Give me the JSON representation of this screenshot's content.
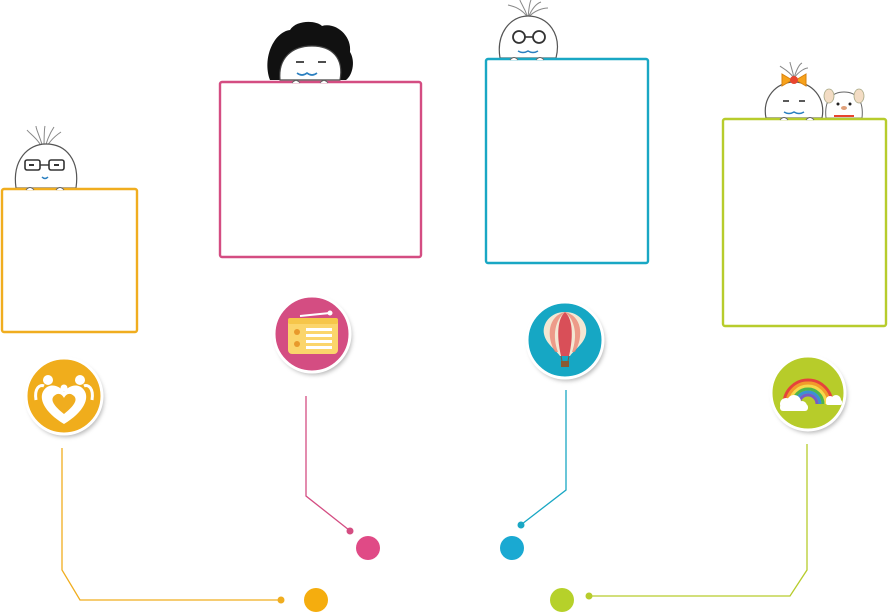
{
  "colors": {
    "orange": "#f0ad1f",
    "pink": "#d44d82",
    "blue": "#19a7c4",
    "green": "#b7cc2c",
    "magenta_dot": "#e04a86",
    "blue_dot": "#1aa9d2",
    "orange_dot": "#f5ad0e",
    "green_dot": "#b6d12a"
  },
  "items": [
    {
      "name": "family",
      "icon": "family-heart-icon",
      "color": "orange",
      "character": "glasses-bun-character"
    },
    {
      "name": "radio",
      "icon": "radio-icon",
      "color": "pink",
      "character": "curly-hair-character"
    },
    {
      "name": "balloon",
      "icon": "hot-air-balloon-icon",
      "color": "blue",
      "character": "round-glasses-character"
    },
    {
      "name": "rainbow",
      "icon": "rainbow-icon",
      "color": "green",
      "character": "bow-character-with-dog"
    }
  ]
}
